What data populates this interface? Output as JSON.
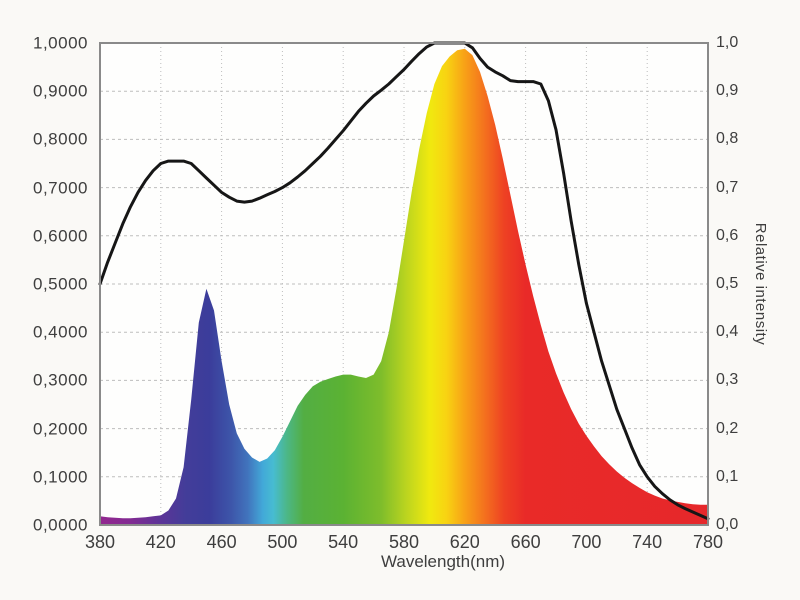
{
  "chart_data": {
    "type": "area",
    "title": "",
    "xlabel": "Wavelength(nm)",
    "ylabel_right": "Relative intensity",
    "xlim": [
      380,
      780
    ],
    "ylim": [
      0,
      1
    ],
    "grid": true,
    "decimal_separator": ",",
    "colors": {
      "line": "#161616",
      "frame": "#8a8a8a",
      "grid": "#bdbdbd",
      "plot_bg": "#fefefd",
      "page_bg": "#faf9f6",
      "label": "#3e3e3e"
    },
    "axes": {
      "x": {
        "ticks": [
          "380",
          "420",
          "460",
          "500",
          "540",
          "580",
          "620",
          "660",
          "700",
          "740",
          "780"
        ],
        "tick_values": [
          380,
          420,
          460,
          500,
          540,
          580,
          620,
          660,
          700,
          740,
          780
        ]
      },
      "y_left": {
        "ticks": [
          "1,0000",
          "0,9000",
          "0,8000",
          "0,7000",
          "0,6000",
          "0,5000",
          "0,4000",
          "0,3000",
          "0,2000",
          "0,1000",
          "0,0000"
        ],
        "tick_values": [
          1.0,
          0.9,
          0.8,
          0.7,
          0.6,
          0.5,
          0.4,
          0.3,
          0.2,
          0.1,
          0.0
        ]
      },
      "y_right": {
        "ticks": [
          "1,0",
          "0,9",
          "0,8",
          "0,7",
          "0,6",
          "0,5",
          "0,4",
          "0,3",
          "0,2",
          "0,1",
          "0,0"
        ],
        "tick_values": [
          1.0,
          0.9,
          0.8,
          0.7,
          0.6,
          0.5,
          0.4,
          0.3,
          0.2,
          0.1,
          0.0
        ]
      }
    },
    "x": [
      380,
      385,
      390,
      395,
      400,
      405,
      410,
      415,
      420,
      425,
      430,
      435,
      440,
      445,
      450,
      455,
      460,
      465,
      470,
      475,
      480,
      485,
      490,
      495,
      500,
      505,
      510,
      515,
      520,
      525,
      530,
      535,
      540,
      545,
      550,
      555,
      560,
      565,
      570,
      575,
      580,
      585,
      590,
      595,
      600,
      605,
      610,
      615,
      620,
      625,
      630,
      635,
      640,
      645,
      650,
      655,
      660,
      665,
      670,
      675,
      680,
      685,
      690,
      695,
      700,
      705,
      710,
      715,
      720,
      725,
      730,
      735,
      740,
      745,
      750,
      755,
      760,
      765,
      770,
      775,
      780
    ],
    "series": [
      {
        "name": "led-spectrum-fill",
        "type": "area",
        "fill": "spectral-gradient",
        "values": [
          0.018,
          0.016,
          0.015,
          0.014,
          0.014,
          0.015,
          0.016,
          0.018,
          0.02,
          0.03,
          0.055,
          0.12,
          0.26,
          0.42,
          0.49,
          0.445,
          0.34,
          0.25,
          0.19,
          0.158,
          0.14,
          0.131,
          0.138,
          0.155,
          0.183,
          0.215,
          0.247,
          0.27,
          0.288,
          0.297,
          0.303,
          0.308,
          0.312,
          0.312,
          0.308,
          0.305,
          0.312,
          0.34,
          0.4,
          0.49,
          0.59,
          0.69,
          0.78,
          0.855,
          0.915,
          0.952,
          0.972,
          0.985,
          0.988,
          0.975,
          0.94,
          0.89,
          0.83,
          0.76,
          0.685,
          0.61,
          0.54,
          0.475,
          0.415,
          0.36,
          0.315,
          0.275,
          0.24,
          0.21,
          0.185,
          0.163,
          0.143,
          0.126,
          0.111,
          0.098,
          0.087,
          0.077,
          0.068,
          0.061,
          0.055,
          0.051,
          0.048,
          0.045,
          0.043,
          0.042,
          0.042
        ]
      },
      {
        "name": "envelope-line",
        "type": "line",
        "color": "#161616",
        "values": [
          0.5,
          0.545,
          0.585,
          0.625,
          0.66,
          0.69,
          0.715,
          0.735,
          0.75,
          0.755,
          0.755,
          0.755,
          0.75,
          0.735,
          0.72,
          0.705,
          0.69,
          0.68,
          0.672,
          0.67,
          0.672,
          0.678,
          0.685,
          0.692,
          0.7,
          0.71,
          0.722,
          0.735,
          0.75,
          0.765,
          0.782,
          0.8,
          0.818,
          0.838,
          0.858,
          0.875,
          0.89,
          0.902,
          0.915,
          0.93,
          0.945,
          0.962,
          0.978,
          0.992,
          1.0,
          1.0,
          1.0,
          1.0,
          1.0,
          0.99,
          0.968,
          0.95,
          0.94,
          0.932,
          0.922,
          0.92,
          0.92,
          0.92,
          0.915,
          0.88,
          0.82,
          0.73,
          0.63,
          0.54,
          0.46,
          0.4,
          0.34,
          0.29,
          0.24,
          0.2,
          0.16,
          0.125,
          0.1,
          0.08,
          0.065,
          0.052,
          0.042,
          0.034,
          0.027,
          0.02,
          0.013
        ]
      }
    ],
    "gradient_stops": [
      {
        "nm": 380,
        "color": "#93278f"
      },
      {
        "nm": 400,
        "color": "#822b92"
      },
      {
        "nm": 418,
        "color": "#5f3397"
      },
      {
        "nm": 436,
        "color": "#433d99"
      },
      {
        "nm": 452,
        "color": "#3b3d9b"
      },
      {
        "nm": 466,
        "color": "#3d55a9"
      },
      {
        "nm": 477,
        "color": "#4173bc"
      },
      {
        "nm": 487,
        "color": "#42a8d8"
      },
      {
        "nm": 494,
        "color": "#47bcd1"
      },
      {
        "nm": 503,
        "color": "#4cb787"
      },
      {
        "nm": 514,
        "color": "#53ae43"
      },
      {
        "nm": 540,
        "color": "#5bb233"
      },
      {
        "nm": 565,
        "color": "#7ebd2b"
      },
      {
        "nm": 582,
        "color": "#bdd51f"
      },
      {
        "nm": 597,
        "color": "#f0e90f"
      },
      {
        "nm": 608,
        "color": "#f8d312"
      },
      {
        "nm": 620,
        "color": "#f8a117"
      },
      {
        "nm": 633,
        "color": "#f4711e"
      },
      {
        "nm": 646,
        "color": "#ee4123"
      },
      {
        "nm": 660,
        "color": "#e92a28"
      },
      {
        "nm": 780,
        "color": "#e6282b"
      }
    ]
  }
}
